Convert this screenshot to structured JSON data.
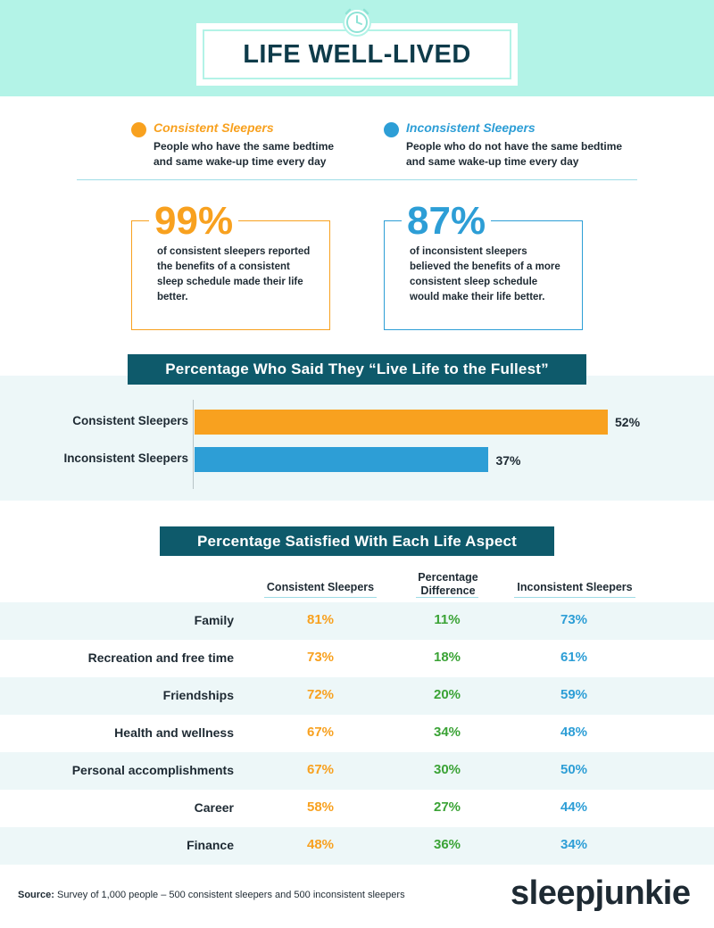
{
  "title": "LIFE WELL-LIVED",
  "colors": {
    "consistent": "#f8a11f",
    "inconsistent": "#2d9ed6",
    "difference": "#3ba336",
    "accent": "#0e5a6b"
  },
  "legend": {
    "consistent": {
      "name": "Consistent Sleepers",
      "desc": "People who have the same bedtime and same wake-up time every day"
    },
    "inconsistent": {
      "name": "Inconsistent Sleepers",
      "desc": "People who do not have the same bedtime and same wake-up time every day"
    }
  },
  "stats": {
    "consistent": {
      "value": "99%",
      "text": "of consistent sleepers reported the benefits of a consistent sleep schedule made their life better."
    },
    "inconsistent": {
      "value": "87%",
      "text": "of inconsistent sleepers believed the benefits of a more consistent sleep schedule would make their life better."
    }
  },
  "chart_data": [
    {
      "type": "bar",
      "orientation": "horizontal",
      "title": "Percentage Who Said They “Live Life to the Fullest”",
      "categories": [
        "Consistent Sleepers",
        "Inconsistent Sleepers"
      ],
      "values": [
        52,
        37
      ],
      "value_labels": [
        "52%",
        "37%"
      ],
      "xlim": [
        0,
        70
      ]
    },
    {
      "type": "table",
      "title": "Percentage Satisfied With Each Life Aspect",
      "columns": [
        "Consistent Sleepers",
        "Percentage Difference",
        "Inconsistent Sleepers"
      ],
      "rows": [
        {
          "label": "Family",
          "values": [
            "81%",
            "11%",
            "73%"
          ]
        },
        {
          "label": "Recreation and free time",
          "values": [
            "73%",
            "18%",
            "61%"
          ]
        },
        {
          "label": "Friendships",
          "values": [
            "72%",
            "20%",
            "59%"
          ]
        },
        {
          "label": "Health and wellness",
          "values": [
            "67%",
            "34%",
            "48%"
          ]
        },
        {
          "label": "Personal accomplishments",
          "values": [
            "67%",
            "30%",
            "50%"
          ]
        },
        {
          "label": "Career",
          "values": [
            "58%",
            "27%",
            "44%"
          ]
        },
        {
          "label": "Finance",
          "values": [
            "48%",
            "36%",
            "34%"
          ]
        }
      ]
    }
  ],
  "source": {
    "label": "Source:",
    "text": "Survey of 1,000 people – 500 consistent sleepers and 500 inconsistent sleepers"
  },
  "brand": "sleepjunkie",
  "icons": {
    "header": "alarm-clock-icon"
  }
}
